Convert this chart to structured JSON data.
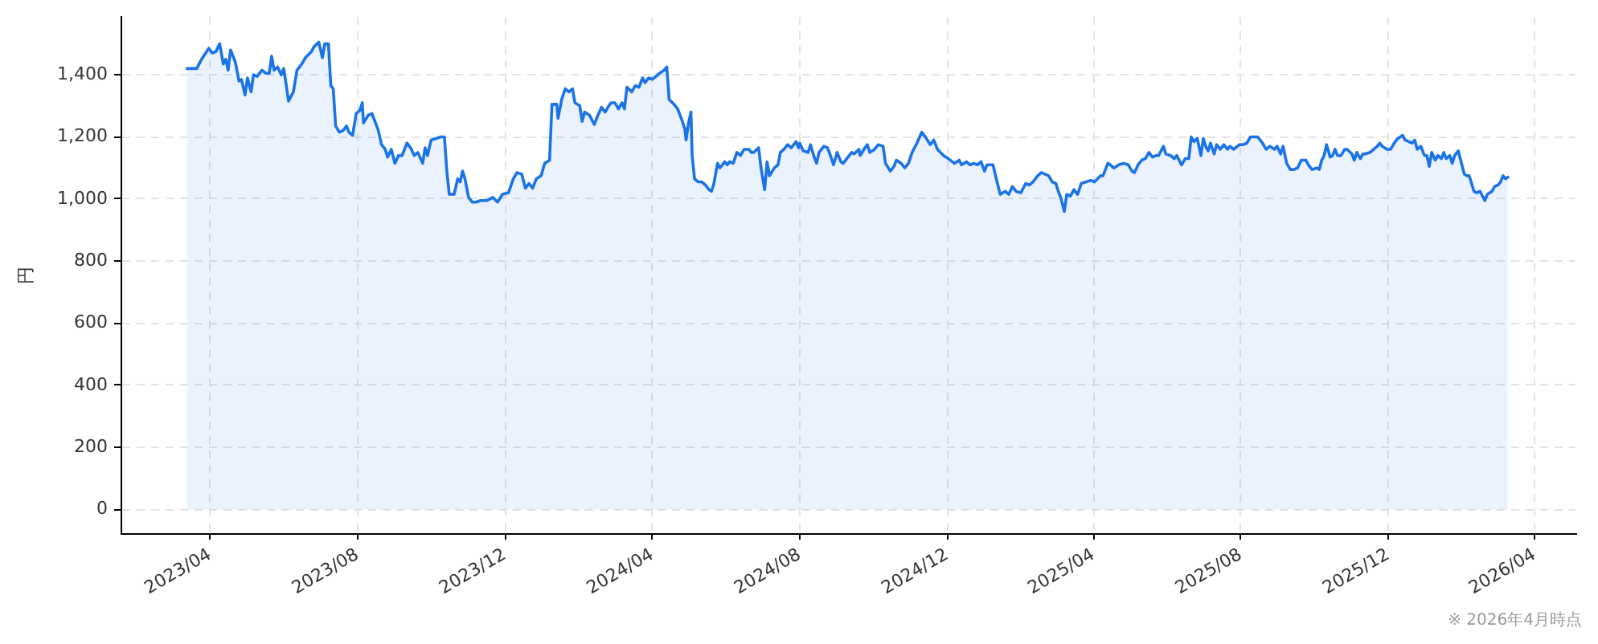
{
  "chart_data": {
    "type": "area",
    "ylabel": "円",
    "annotations": [
      "※ 2026年4月時点"
    ],
    "x": [
      "2023-03-13",
      "2023-03-16",
      "2023-03-21",
      "2023-03-25",
      "2023-03-31",
      "2023-04-03",
      "2023-04-06",
      "2023-04-09",
      "2023-04-12",
      "2023-04-14",
      "2023-04-16",
      "2023-04-18",
      "2023-04-22",
      "2023-04-25",
      "2023-04-27",
      "2023-04-30",
      "2023-05-02",
      "2023-05-05",
      "2023-05-07",
      "2023-05-10",
      "2023-05-14",
      "2023-05-17",
      "2023-05-20",
      "2023-05-22",
      "2023-05-24",
      "2023-05-27",
      "2023-05-30",
      "2023-06-01",
      "2023-06-03",
      "2023-06-05",
      "2023-06-09",
      "2023-06-12",
      "2023-06-16",
      "2023-06-19",
      "2023-06-24",
      "2023-06-26",
      "2023-06-30",
      "2023-07-03",
      "2023-07-05",
      "2023-07-08",
      "2023-07-10",
      "2023-07-12",
      "2023-07-14",
      "2023-07-17",
      "2023-07-20",
      "2023-07-23",
      "2023-07-25",
      "2023-07-28",
      "2023-07-31",
      "2023-08-03",
      "2023-08-05",
      "2023-08-06",
      "2023-08-10",
      "2023-08-13",
      "2023-08-16",
      "2023-08-18",
      "2023-08-21",
      "2023-08-24",
      "2023-08-26",
      "2023-08-29",
      "2023-09-01",
      "2023-09-04",
      "2023-09-07",
      "2023-09-11",
      "2023-09-14",
      "2023-09-17",
      "2023-09-20",
      "2023-09-24",
      "2023-09-26",
      "2023-09-28",
      "2023-10-01",
      "2023-10-05",
      "2023-10-09",
      "2023-10-12",
      "2023-10-14",
      "2023-10-16",
      "2023-10-20",
      "2023-10-23",
      "2023-10-25",
      "2023-10-27",
      "2023-10-29",
      "2023-11-01",
      "2023-11-04",
      "2023-11-07",
      "2023-11-11",
      "2023-11-16",
      "2023-11-21",
      "2023-11-25",
      "2023-11-29",
      "2023-12-04",
      "2023-12-08",
      "2023-12-11",
      "2023-12-15",
      "2023-12-18",
      "2023-12-21",
      "2023-12-24",
      "2023-12-27",
      "2023-12-31",
      "2024-01-03",
      "2024-01-07",
      "2024-01-09",
      "2024-01-13",
      "2024-01-14",
      "2024-01-17",
      "2024-01-20",
      "2024-01-23",
      "2024-01-26",
      "2024-01-28",
      "2024-02-01",
      "2024-02-03",
      "2024-02-05",
      "2024-02-09",
      "2024-02-13",
      "2024-02-16",
      "2024-02-19",
      "2024-02-22",
      "2024-02-25",
      "2024-02-27",
      "2024-03-01",
      "2024-03-04",
      "2024-03-07",
      "2024-03-09",
      "2024-03-11",
      "2024-03-15",
      "2024-03-18",
      "2024-03-21",
      "2024-03-24",
      "2024-03-26",
      "2024-03-29",
      "2024-04-01",
      "2024-04-04",
      "2024-04-07",
      "2024-04-11",
      "2024-04-13",
      "2024-04-15",
      "2024-04-19",
      "2024-04-22",
      "2024-04-25",
      "2024-04-28",
      "2024-04-29",
      "2024-05-01",
      "2024-05-03",
      "2024-05-04",
      "2024-05-06",
      "2024-05-09",
      "2024-05-12",
      "2024-05-15",
      "2024-05-18",
      "2024-05-20",
      "2024-05-22",
      "2024-05-25",
      "2024-05-27",
      "2024-05-29",
      "2024-05-31",
      "2024-06-02",
      "2024-06-04",
      "2024-06-07",
      "2024-06-10",
      "2024-06-13",
      "2024-06-16",
      "2024-06-20",
      "2024-06-22",
      "2024-06-24",
      "2024-06-28",
      "2024-06-30",
      "2024-07-03",
      "2024-07-05",
      "2024-07-07",
      "2024-07-11",
      "2024-07-14",
      "2024-07-16",
      "2024-07-19",
      "2024-07-22",
      "2024-07-25",
      "2024-07-29",
      "2024-07-31",
      "2024-08-01",
      "2024-08-04",
      "2024-08-08",
      "2024-08-10",
      "2024-08-13",
      "2024-08-15",
      "2024-08-17",
      "2024-08-21",
      "2024-08-24",
      "2024-08-26",
      "2024-08-29",
      "2024-09-01",
      "2024-09-04",
      "2024-09-06",
      "2024-09-10",
      "2024-09-13",
      "2024-09-15",
      "2024-09-19",
      "2024-09-20",
      "2024-09-24",
      "2024-09-26",
      "2024-09-28",
      "2024-10-02",
      "2024-10-05",
      "2024-10-09",
      "2024-10-11",
      "2024-10-15",
      "2024-10-18",
      "2024-10-20",
      "2024-10-24",
      "2024-10-27",
      "2024-10-30",
      "2024-11-02",
      "2024-11-06",
      "2024-11-10",
      "2024-11-13",
      "2024-11-17",
      "2024-11-20",
      "2024-11-23",
      "2024-11-28",
      "2024-12-02",
      "2024-12-07",
      "2024-12-11",
      "2024-12-13",
      "2024-12-17",
      "2024-12-20",
      "2024-12-23",
      "2024-12-26",
      "2024-12-29",
      "2025-01-01",
      "2025-01-03",
      "2025-01-08",
      "2025-01-11",
      "2025-01-14",
      "2025-01-18",
      "2025-01-21",
      "2025-01-24",
      "2025-01-27",
      "2025-01-31",
      "2025-02-04",
      "2025-02-07",
      "2025-02-10",
      "2025-02-14",
      "2025-02-17",
      "2025-02-20",
      "2025-02-23",
      "2025-02-26",
      "2025-03-01",
      "2025-03-03",
      "2025-03-05",
      "2025-03-08",
      "2025-03-10",
      "2025-03-13",
      "2025-03-16",
      "2025-03-19",
      "2025-03-22",
      "2025-03-26",
      "2025-03-30",
      "2025-04-02",
      "2025-04-07",
      "2025-04-09",
      "2025-04-13",
      "2025-04-15",
      "2025-04-18",
      "2025-04-22",
      "2025-04-26",
      "2025-04-30",
      "2025-05-03",
      "2025-05-05",
      "2025-05-08",
      "2025-05-11",
      "2025-05-14",
      "2025-05-17",
      "2025-05-20",
      "2025-05-23",
      "2025-05-25",
      "2025-05-29",
      "2025-05-31",
      "2025-06-04",
      "2025-06-07",
      "2025-06-09",
      "2025-06-13",
      "2025-06-16",
      "2025-06-19",
      "2025-06-21",
      "2025-06-23",
      "2025-06-26",
      "2025-06-29",
      "2025-07-01",
      "2025-07-03",
      "2025-07-05",
      "2025-07-07",
      "2025-07-10",
      "2025-07-12",
      "2025-07-15",
      "2025-07-18",
      "2025-07-21",
      "2025-07-23",
      "2025-07-26",
      "2025-07-31",
      "2025-08-03",
      "2025-08-06",
      "2025-08-09",
      "2025-08-15",
      "2025-08-19",
      "2025-08-22",
      "2025-08-25",
      "2025-08-29",
      "2025-08-31",
      "2025-09-03",
      "2025-09-05",
      "2025-09-08",
      "2025-09-11",
      "2025-09-14",
      "2025-09-17",
      "2025-09-20",
      "2025-09-24",
      "2025-09-26",
      "2025-09-29",
      "2025-10-03",
      "2025-10-05",
      "2025-10-07",
      "2025-10-09",
      "2025-10-11",
      "2025-10-14",
      "2025-10-16",
      "2025-10-18",
      "2025-10-20",
      "2025-10-23",
      "2025-10-26",
      "2025-10-28",
      "2025-11-01",
      "2025-11-03",
      "2025-11-05",
      "2025-11-08",
      "2025-11-10",
      "2025-11-12",
      "2025-11-16",
      "2025-11-19",
      "2025-11-22",
      "2025-11-24",
      "2025-11-26",
      "2025-11-30",
      "2025-12-03",
      "2025-12-06",
      "2025-12-09",
      "2025-12-13",
      "2025-12-15",
      "2025-12-18",
      "2025-12-21",
      "2025-12-23",
      "2025-12-25",
      "2025-12-28",
      "2025-12-31",
      "2026-01-02",
      "2026-01-04",
      "2026-01-06",
      "2026-01-09",
      "2026-01-11",
      "2026-01-14",
      "2026-01-16",
      "2026-01-18",
      "2026-01-21",
      "2026-01-23",
      "2026-01-25",
      "2026-01-28",
      "2026-01-30",
      "2026-02-02",
      "2026-02-04",
      "2026-02-06",
      "2026-02-08",
      "2026-02-10",
      "2026-02-12",
      "2026-02-15",
      "2026-02-17",
      "2026-02-19",
      "2026-02-21",
      "2026-02-23",
      "2026-02-25",
      "2026-02-27",
      "2026-03-02",
      "2026-03-04",
      "2026-03-06",
      "2026-03-08",
      "2026-03-10"
    ],
    "values": [
      1420,
      1420,
      1420,
      1450,
      1485,
      1470,
      1475,
      1500,
      1435,
      1450,
      1415,
      1480,
      1440,
      1380,
      1385,
      1335,
      1390,
      1345,
      1400,
      1395,
      1415,
      1405,
      1405,
      1460,
      1415,
      1425,
      1400,
      1420,
      1370,
      1315,
      1345,
      1415,
      1435,
      1455,
      1475,
      1490,
      1505,
      1455,
      1500,
      1500,
      1365,
      1355,
      1235,
      1215,
      1220,
      1235,
      1215,
      1205,
      1275,
      1285,
      1310,
      1245,
      1270,
      1275,
      1245,
      1225,
      1175,
      1160,
      1135,
      1160,
      1115,
      1140,
      1140,
      1180,
      1165,
      1140,
      1150,
      1115,
      1165,
      1140,
      1190,
      1195,
      1200,
      1200,
      1090,
      1015,
      1015,
      1065,
      1055,
      1090,
      1065,
      1005,
      990,
      990,
      995,
      995,
      1005,
      990,
      1015,
      1020,
      1065,
      1085,
      1080,
      1035,
      1050,
      1035,
      1065,
      1075,
      1115,
      1125,
      1305,
      1305,
      1260,
      1320,
      1355,
      1345,
      1355,
      1310,
      1300,
      1250,
      1280,
      1270,
      1240,
      1270,
      1295,
      1280,
      1300,
      1310,
      1310,
      1290,
      1310,
      1290,
      1360,
      1345,
      1365,
      1360,
      1390,
      1375,
      1390,
      1385,
      1395,
      1405,
      1415,
      1425,
      1320,
      1305,
      1290,
      1260,
      1225,
      1190,
      1245,
      1280,
      1140,
      1065,
      1055,
      1055,
      1045,
      1030,
      1025,
      1050,
      1115,
      1100,
      1110,
      1120,
      1110,
      1120,
      1115,
      1150,
      1140,
      1160,
      1160,
      1150,
      1150,
      1165,
      1100,
      1030,
      1120,
      1075,
      1100,
      1110,
      1150,
      1160,
      1175,
      1165,
      1185,
      1165,
      1180,
      1155,
      1150,
      1175,
      1135,
      1115,
      1150,
      1170,
      1165,
      1145,
      1110,
      1150,
      1120,
      1115,
      1135,
      1150,
      1145,
      1160,
      1140,
      1165,
      1175,
      1150,
      1160,
      1175,
      1170,
      1115,
      1090,
      1105,
      1125,
      1115,
      1100,
      1115,
      1150,
      1180,
      1215,
      1200,
      1175,
      1190,
      1160,
      1140,
      1130,
      1115,
      1125,
      1110,
      1120,
      1110,
      1115,
      1110,
      1120,
      1090,
      1110,
      1110,
      1060,
      1015,
      1025,
      1015,
      1040,
      1025,
      1020,
      1050,
      1045,
      1055,
      1075,
      1085,
      1080,
      1075,
      1055,
      1050,
      1025,
      1005,
      960,
      1015,
      1010,
      1030,
      1015,
      1050,
      1055,
      1060,
      1055,
      1075,
      1075,
      1115,
      1110,
      1100,
      1110,
      1115,
      1110,
      1090,
      1085,
      1110,
      1125,
      1130,
      1150,
      1135,
      1140,
      1140,
      1170,
      1145,
      1140,
      1130,
      1140,
      1110,
      1130,
      1130,
      1200,
      1185,
      1195,
      1140,
      1195,
      1170,
      1155,
      1180,
      1145,
      1175,
      1160,
      1175,
      1160,
      1170,
      1160,
      1175,
      1175,
      1180,
      1200,
      1200,
      1180,
      1160,
      1170,
      1160,
      1170,
      1145,
      1170,
      1115,
      1095,
      1095,
      1100,
      1125,
      1125,
      1110,
      1095,
      1100,
      1095,
      1125,
      1140,
      1175,
      1135,
      1140,
      1160,
      1140,
      1140,
      1160,
      1160,
      1145,
      1125,
      1150,
      1130,
      1145,
      1145,
      1150,
      1160,
      1170,
      1180,
      1170,
      1160,
      1160,
      1180,
      1195,
      1205,
      1190,
      1185,
      1180,
      1190,
      1160,
      1170,
      1140,
      1140,
      1105,
      1150,
      1125,
      1140,
      1130,
      1150,
      1130,
      1140,
      1115,
      1140,
      1155,
      1125,
      1080,
      1075,
      1075,
      1050,
      1025,
      1020,
      1025,
      1010,
      995,
      1015,
      1020,
      1025,
      1040,
      1045,
      1055,
      1075,
      1065,
      1070
    ],
    "color": "#1a73e8",
    "xlim": [
      "2023-01-17",
      "2026-05-05"
    ],
    "xticks": [
      {
        "value": "2023-04",
        "label": "2023/04"
      },
      {
        "value": "2023-08",
        "label": "2023/08"
      },
      {
        "value": "2023-12",
        "label": "2023/12"
      },
      {
        "value": "2024-04",
        "label": "2024/04"
      },
      {
        "value": "2024-08",
        "label": "2024/08"
      },
      {
        "value": "2024-12",
        "label": "2024/12"
      },
      {
        "value": "2025-04",
        "label": "2025/04"
      },
      {
        "value": "2025-08",
        "label": "2025/08"
      },
      {
        "value": "2025-12",
        "label": "2025/12"
      },
      {
        "value": "2026-04",
        "label": "2026/04"
      }
    ],
    "ylim": [
      -76,
      1586
    ],
    "yticks": [
      0,
      200,
      400,
      600,
      800,
      {
        "value": 1000,
        "label": "1,000"
      },
      {
        "value": 1200,
        "label": "1,200"
      },
      {
        "value": 1400,
        "label": "1,400"
      }
    ],
    "grid": true
  }
}
